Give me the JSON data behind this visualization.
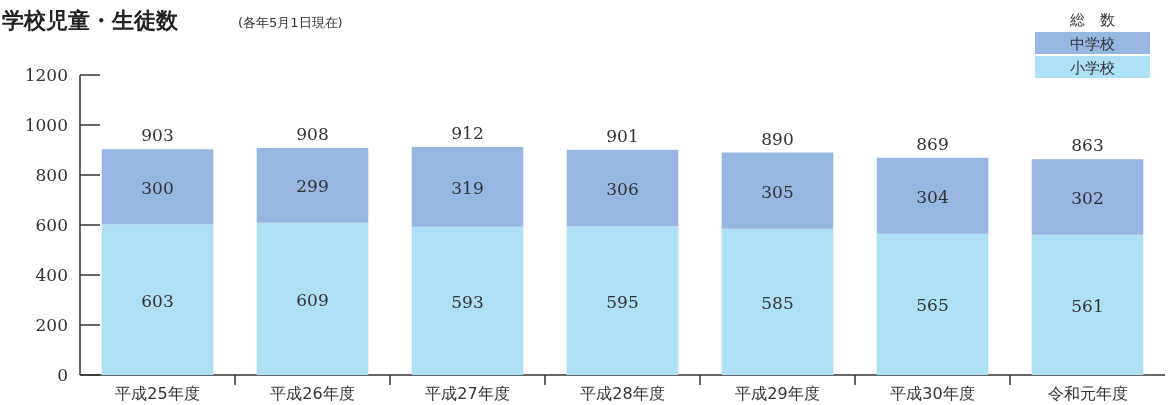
{
  "chart_data": {
    "type": "bar",
    "title": "学校児童・生徒数",
    "subtitle": "(各年5月1日現在)",
    "categories": [
      "平成25年度",
      "平成26年度",
      "平成27年度",
      "平成28年度",
      "平成29年度",
      "平成30年度",
      "令和元年度"
    ],
    "stacked": true,
    "data_labels": true,
    "legend": "top right",
    "legend_title": "総　数",
    "series": [
      {
        "name": "小学校",
        "color": "#aee0f6",
        "values": [
          603,
          609,
          593,
          595,
          585,
          565,
          561
        ]
      },
      {
        "name": "中学校",
        "color": "#98b6e2",
        "values": [
          300,
          299,
          319,
          306,
          305,
          304,
          302
        ]
      }
    ],
    "totals": [
      "903",
      "908",
      "912",
      "901",
      "890",
      "869",
      "863"
    ],
    "ylim": [
      0,
      1200
    ],
    "yticks": [
      0,
      200,
      400,
      600,
      800,
      1000,
      1200
    ]
  }
}
